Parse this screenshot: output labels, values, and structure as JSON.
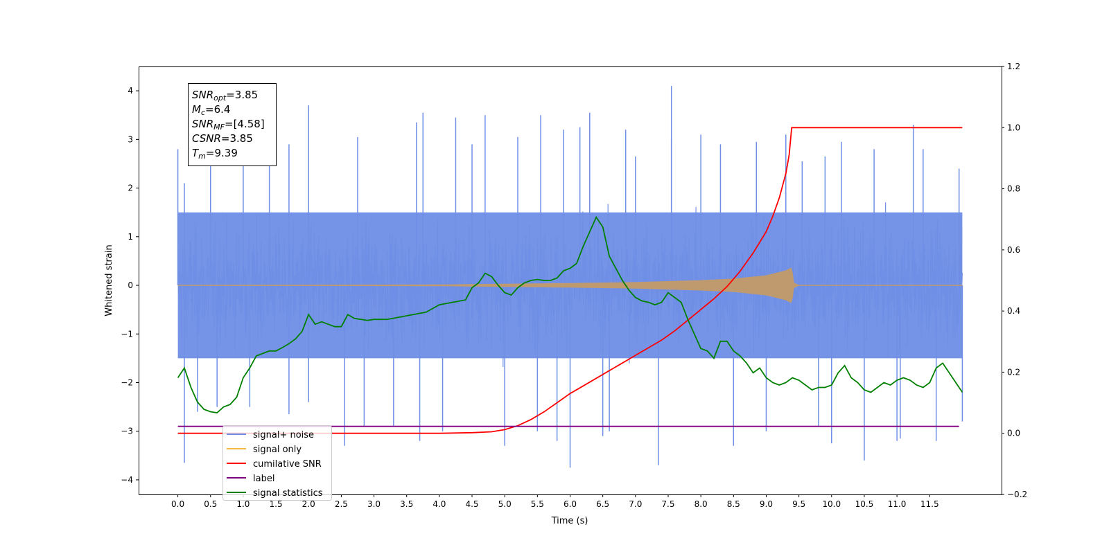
{
  "chart_data": {
    "type": "line",
    "xlabel": "Time (s)",
    "ylabel": "Whitened strain",
    "ylabel_right": "",
    "xlim": [
      -0.6,
      12.6
    ],
    "ylim": [
      -4.3,
      4.5
    ],
    "ylim_right": [
      -0.2,
      1.2
    ],
    "x_ticks": [
      "0.0",
      "0.5",
      "1.0",
      "1.5",
      "2.0",
      "2.5",
      "3.0",
      "3.5",
      "4.0",
      "4.5",
      "5.0",
      "5.5",
      "6.0",
      "6.5",
      "7.0",
      "7.5",
      "8.0",
      "8.5",
      "9.0",
      "9.5",
      "10.0",
      "10.5",
      "11.0",
      "11.5"
    ],
    "y_ticks_left": [
      "4",
      "3",
      "2",
      "1",
      "0",
      "−1",
      "−2",
      "−3",
      "−4"
    ],
    "y_ticks_right": [
      "1.2",
      "1.0",
      "0.8",
      "0.6",
      "0.4",
      "0.2",
      "0.0",
      "−0.2"
    ],
    "grid": false,
    "legend_position": "lower-left",
    "colors": {
      "signal_noise": "#6f8ee6",
      "signal_only": "#f5b942",
      "signal_envelope": "#bf9a6e",
      "cumulative_snr": "#ff0000",
      "label": "#800080",
      "signal_statistics": "#008000"
    },
    "annotation": {
      "lines": [
        {
          "symbol": "SNR",
          "sub": "opt",
          "value": "=3.85"
        },
        {
          "symbol": "M",
          "sub": "c",
          "value": "=6.4"
        },
        {
          "symbol": "SNR",
          "sub": "MF",
          "value": "=[4.58]"
        },
        {
          "symbol": "CSNR",
          "sub": "",
          "value": "=3.85"
        },
        {
          "symbol": "T",
          "sub": "m",
          "value": "=9.39"
        }
      ]
    },
    "series": [
      {
        "name": "signal+ noise",
        "axis": "left",
        "style": "noise",
        "x_range": [
          0.0,
          12.0
        ],
        "band_typical": [
          -1.5,
          1.5
        ],
        "band_max": [
          -2.5,
          2.5
        ],
        "spikes": [
          [
            0.0,
            2.8
          ],
          [
            0.1,
            -3.65
          ],
          [
            0.1,
            2.1
          ],
          [
            0.3,
            -2.6
          ],
          [
            0.5,
            2.6
          ],
          [
            0.6,
            -2.5
          ],
          [
            1.0,
            2.45
          ],
          [
            1.1,
            -2.5
          ],
          [
            1.4,
            3.15
          ],
          [
            1.7,
            2.9
          ],
          [
            1.7,
            -2.65
          ],
          [
            2.0,
            3.7
          ],
          [
            2.0,
            -2.4
          ],
          [
            2.55,
            -3.3
          ],
          [
            2.75,
            3.05
          ],
          [
            2.85,
            -2.9
          ],
          [
            3.3,
            -2.9
          ],
          [
            3.65,
            3.35
          ],
          [
            3.75,
            3.55
          ],
          [
            3.7,
            -3.2
          ],
          [
            4.05,
            -3.0
          ],
          [
            4.25,
            3.45
          ],
          [
            4.5,
            2.9
          ],
          [
            4.7,
            3.5
          ],
          [
            5.0,
            -3.3
          ],
          [
            5.2,
            3.05
          ],
          [
            5.5,
            -3.0
          ],
          [
            5.55,
            3.5
          ],
          [
            5.9,
            3.2
          ],
          [
            5.8,
            -3.2
          ],
          [
            6.0,
            -3.75
          ],
          [
            6.15,
            3.25
          ],
          [
            6.5,
            -3.1
          ],
          [
            6.3,
            3.55
          ],
          [
            6.6,
            -3.0
          ],
          [
            6.85,
            3.2
          ],
          [
            7.0,
            2.65
          ],
          [
            7.35,
            -3.7
          ],
          [
            7.55,
            3.0
          ],
          [
            7.55,
            4.1
          ],
          [
            8.0,
            3.1
          ],
          [
            8.3,
            2.9
          ],
          [
            8.5,
            -3.3
          ],
          [
            8.85,
            2.95
          ],
          [
            9.0,
            -3.0
          ],
          [
            9.3,
            3.1
          ],
          [
            9.55,
            2.55
          ],
          [
            9.8,
            -2.9
          ],
          [
            9.9,
            2.65
          ],
          [
            10.0,
            -3.25
          ],
          [
            10.15,
            2.95
          ],
          [
            10.5,
            -3.6
          ],
          [
            10.65,
            2.8
          ],
          [
            11.0,
            -3.2
          ],
          [
            11.05,
            -3.15
          ],
          [
            11.25,
            3.3
          ],
          [
            11.4,
            2.8
          ],
          [
            11.6,
            -3.2
          ],
          [
            11.95,
            2.4
          ],
          [
            12.0,
            -2.8
          ]
        ]
      },
      {
        "name": "signal only",
        "axis": "left",
        "style": "chirp",
        "x_range": [
          0.0,
          9.39
        ],
        "amplitude_at": [
          [
            0.0,
            0.0
          ],
          [
            4.0,
            0.01
          ],
          [
            6.0,
            0.04
          ],
          [
            7.0,
            0.06
          ],
          [
            8.0,
            0.1
          ],
          [
            8.5,
            0.13
          ],
          [
            9.0,
            0.2
          ],
          [
            9.3,
            0.3
          ],
          [
            9.39,
            0.36
          ],
          [
            9.42,
            0.05
          ],
          [
            9.5,
            0.0
          ],
          [
            12.0,
            0.0
          ]
        ]
      },
      {
        "name": "cumilative SNR",
        "axis": "right",
        "x": [
          0.0,
          4.0,
          4.5,
          4.8,
          5.0,
          5.2,
          5.4,
          5.6,
          5.8,
          6.0,
          6.2,
          6.4,
          6.6,
          6.8,
          7.0,
          7.2,
          7.4,
          7.6,
          7.8,
          8.0,
          8.2,
          8.4,
          8.6,
          8.8,
          9.0,
          9.1,
          9.2,
          9.3,
          9.35,
          9.39,
          12.0
        ],
        "y": [
          0.0,
          0.0,
          0.002,
          0.005,
          0.012,
          0.025,
          0.045,
          0.07,
          0.1,
          0.13,
          0.155,
          0.18,
          0.205,
          0.23,
          0.255,
          0.28,
          0.305,
          0.335,
          0.37,
          0.405,
          0.44,
          0.48,
          0.53,
          0.59,
          0.66,
          0.71,
          0.77,
          0.85,
          0.91,
          1.0,
          1.0
        ]
      },
      {
        "name": "label",
        "axis": "left",
        "x": [
          0.0,
          11.95
        ],
        "y": [
          -2.9,
          -2.9
        ]
      },
      {
        "name": "signal statistics",
        "axis": "left",
        "x": [
          0.0,
          0.1,
          0.2,
          0.3,
          0.4,
          0.5,
          0.6,
          0.7,
          0.8,
          0.9,
          1.0,
          1.1,
          1.2,
          1.3,
          1.4,
          1.5,
          1.6,
          1.7,
          1.8,
          1.9,
          2.0,
          2.1,
          2.2,
          2.3,
          2.4,
          2.5,
          2.6,
          2.7,
          2.8,
          2.9,
          3.0,
          3.2,
          3.4,
          3.6,
          3.8,
          4.0,
          4.2,
          4.4,
          4.5,
          4.6,
          4.7,
          4.8,
          4.9,
          5.0,
          5.1,
          5.2,
          5.3,
          5.4,
          5.5,
          5.6,
          5.7,
          5.8,
          5.9,
          6.0,
          6.1,
          6.2,
          6.3,
          6.4,
          6.5,
          6.55,
          6.6,
          6.7,
          6.8,
          6.9,
          7.0,
          7.1,
          7.2,
          7.3,
          7.4,
          7.5,
          7.6,
          7.7,
          7.8,
          7.9,
          8.0,
          8.1,
          8.2,
          8.3,
          8.4,
          8.5,
          8.6,
          8.7,
          8.8,
          8.9,
          9.0,
          9.1,
          9.2,
          9.3,
          9.4,
          9.5,
          9.6,
          9.7,
          9.8,
          9.9,
          10.0,
          10.1,
          10.2,
          10.3,
          10.4,
          10.5,
          10.6,
          10.7,
          10.8,
          10.9,
          11.0,
          11.1,
          11.2,
          11.3,
          11.4,
          11.5,
          11.6,
          11.7,
          11.8,
          11.9,
          12.0
        ],
        "y": [
          -1.9,
          -1.7,
          -2.1,
          -2.4,
          -2.55,
          -2.6,
          -2.62,
          -2.5,
          -2.45,
          -2.3,
          -1.9,
          -1.7,
          -1.45,
          -1.4,
          -1.35,
          -1.35,
          -1.28,
          -1.2,
          -1.1,
          -0.95,
          -0.6,
          -0.8,
          -0.75,
          -0.8,
          -0.85,
          -0.85,
          -0.6,
          -0.68,
          -0.7,
          -0.72,
          -0.7,
          -0.7,
          -0.65,
          -0.6,
          -0.55,
          -0.4,
          -0.35,
          -0.3,
          -0.05,
          0.05,
          0.25,
          0.18,
          0.0,
          -0.15,
          -0.2,
          -0.05,
          0.05,
          0.1,
          0.12,
          0.1,
          0.1,
          0.15,
          0.3,
          0.35,
          0.45,
          0.8,
          1.1,
          1.4,
          1.2,
          0.9,
          0.6,
          0.35,
          0.1,
          -0.1,
          -0.25,
          -0.32,
          -0.35,
          -0.4,
          -0.35,
          -0.15,
          -0.25,
          -0.35,
          -0.7,
          -1.0,
          -1.3,
          -1.35,
          -1.5,
          -1.15,
          -1.15,
          -1.35,
          -1.45,
          -1.6,
          -1.8,
          -1.7,
          -1.9,
          -2.0,
          -2.05,
          -2.0,
          -1.9,
          -1.95,
          -2.05,
          -2.15,
          -2.1,
          -2.1,
          -2.05,
          -1.8,
          -1.65,
          -1.9,
          -2.0,
          -2.15,
          -2.2,
          -2.1,
          -2.0,
          -2.05,
          -1.95,
          -1.9,
          -1.95,
          -2.05,
          -2.1,
          -2.0,
          -1.7,
          -1.6,
          -1.8,
          -2.0,
          -2.2
        ]
      }
    ]
  }
}
